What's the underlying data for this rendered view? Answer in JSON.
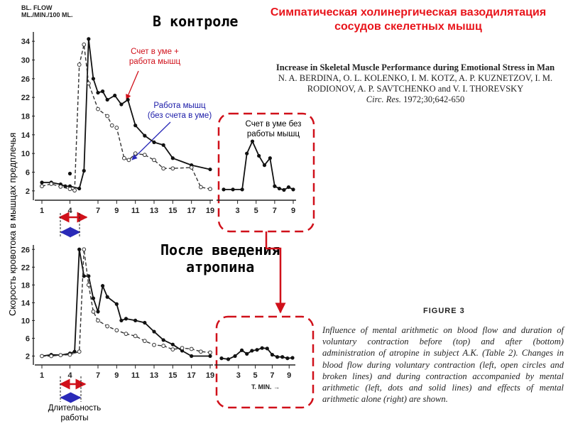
{
  "slide_title": "Симпатическая холинергическая вазодилятация сосудов скелетных мышц",
  "control_label": "В контроле",
  "atropine_label_1": "После введения",
  "atropine_label_2": "атропина",
  "y_axis_label": "Скорость кровотока в мышцах предплечья",
  "duration_label_1": "Длительность",
  "duration_label_2": "работы",
  "annotations": {
    "math_work_1": "Счет в уме +",
    "math_work_2": "работа мышц",
    "work_only_1": "Работа мышц",
    "work_only_2": "(без счета в уме)",
    "math_only_1": "Счет в уме без",
    "math_only_2": "работы мышц"
  },
  "reference": {
    "title": "Increase in Skeletal Muscle Performance during Emotional Stress in Man",
    "authors_1": "N. A. BERDINA, O. L. KOLENKO, I. M. KOTZ, A. P. KUZNETZOV, I. M.",
    "authors_2": "RODIONOV, A. P. SAVTCHENKO and V. I. THOREVSKY",
    "journal": "Circ. Res.",
    "citation": "1972;30;642-650"
  },
  "figure_label": "FIGURE 3",
  "figure_caption": "Influence of mental arithmetic on blood flow and duration of voluntary contraction before (top) and after (bottom) administration of atropine in subject A.K. (Table 2). Changes in blood flow during voluntary contraction (left, open circles and broken lines) and during contraction accompanied by mental arithmetic (left, dots and solid lines) and effects of mental arithmetic alone (right) are shown.",
  "chart_data": [
    {
      "type": "line",
      "title": "",
      "ylabel_1": "BL. FLOW",
      "ylabel_2": "ML./MIN./100 ML.",
      "xlabel": "",
      "x_ticks": [
        "1",
        "4",
        "7",
        "9",
        "11",
        "13",
        "15",
        "17",
        "19"
      ],
      "y_ticks": [
        "2",
        "6",
        "10",
        "14",
        "18",
        "22",
        "26",
        "30",
        "34"
      ],
      "xlim": [
        1,
        19
      ],
      "ylim": [
        0,
        36
      ],
      "series": [
        {
          "style": "dots-solid",
          "x": [
            1,
            2,
            3,
            3.5,
            4,
            5,
            5.5,
            6,
            6.5,
            7,
            7.5,
            8,
            8.8,
            9.5,
            10.2,
            11,
            12,
            13,
            14,
            15,
            17,
            19
          ],
          "y": [
            3.8,
            3.8,
            3.4,
            3,
            3,
            2.5,
            6.3,
            34.5,
            26,
            23,
            23.3,
            21.5,
            22.4,
            20.5,
            21.5,
            16,
            13.8,
            12.4,
            11.8,
            9,
            7.5,
            6.6
          ]
        },
        {
          "style": "circles-dashed",
          "x": [
            1,
            2,
            3,
            4,
            4.5,
            5,
            5.5,
            6,
            7,
            8,
            8.5,
            9,
            9.8,
            10.3,
            11,
            12,
            13,
            14,
            15,
            17,
            18,
            19
          ],
          "y": [
            3,
            3.5,
            2.9,
            2.4,
            2.1,
            29,
            33.3,
            25,
            19.5,
            18,
            16,
            15.5,
            9,
            8.6,
            10,
            9.7,
            8.6,
            6.8,
            6.8,
            7,
            2.8,
            2.4
          ]
        },
        {
          "style": "marker-dots",
          "x": [
            4
          ],
          "y": [
            5.7
          ]
        }
      ]
    },
    {
      "type": "line",
      "title": "",
      "xlabel": "",
      "x_ticks": [
        "3",
        "5",
        "7",
        "9"
      ],
      "ylim": [
        0,
        36
      ],
      "series": [
        {
          "style": "dots-solid",
          "x": [
            1.5,
            2.5,
            3.5,
            4,
            4.6,
            5.3,
            5.9,
            6.5,
            7,
            7.5,
            8,
            8.5,
            9
          ],
          "y": [
            2.3,
            2.3,
            2.3,
            10,
            12.6,
            9.5,
            7.5,
            9,
            3,
            2.5,
            2.2,
            2.8,
            2.3
          ]
        }
      ]
    },
    {
      "type": "line",
      "title": "",
      "xlabel": "",
      "x_ticks": [
        "1",
        "4",
        "7",
        "9",
        "11",
        "13",
        "15",
        "17",
        "19"
      ],
      "y_ticks": [
        "2",
        "6",
        "10",
        "14",
        "18",
        "22",
        "26"
      ],
      "xlim": [
        1,
        19
      ],
      "ylim": [
        0,
        27
      ],
      "series": [
        {
          "style": "dots-solid",
          "x": [
            1,
            2,
            3,
            4,
            4.5,
            5,
            5.5,
            6,
            6.5,
            7,
            7.5,
            8,
            9,
            9.5,
            10,
            11,
            12,
            13,
            14,
            15,
            16,
            17,
            19
          ],
          "y": [
            2,
            2.3,
            2.2,
            2.6,
            3,
            26,
            20,
            20,
            15,
            12,
            17.8,
            15.3,
            13.7,
            10,
            10.4,
            10,
            9.5,
            7.5,
            5.6,
            4.6,
            3.2,
            2,
            2
          ]
        },
        {
          "style": "circles-dashed",
          "x": [
            1,
            2,
            3,
            4,
            5,
            5.5,
            6,
            6.5,
            7,
            8,
            9,
            10,
            11,
            12,
            13,
            14,
            15,
            16,
            17,
            18,
            19
          ],
          "y": [
            2,
            2,
            2.2,
            2.3,
            3,
            26,
            18,
            12,
            10,
            8.7,
            7.8,
            7,
            6.5,
            5.4,
            4.5,
            4.3,
            3.5,
            3.8,
            3.6,
            3,
            2.8
          ]
        }
      ]
    },
    {
      "type": "line",
      "title": "",
      "xlabel": "T. MIN.",
      "x_ticks": [
        "3",
        "5",
        "7",
        "9"
      ],
      "ylim": [
        0,
        27
      ],
      "series": [
        {
          "style": "dots-solid",
          "x": [
            1,
            1.8,
            2.6,
            3.4,
            4,
            4.6,
            5.2,
            5.8,
            6.4,
            7,
            7.6,
            8.2,
            8.8,
            9.4
          ],
          "y": [
            1.5,
            1.3,
            2,
            3.3,
            2.5,
            3.2,
            3.4,
            3.8,
            3.7,
            2.3,
            1.8,
            1.8,
            1.5,
            1.6
          ]
        }
      ]
    }
  ]
}
